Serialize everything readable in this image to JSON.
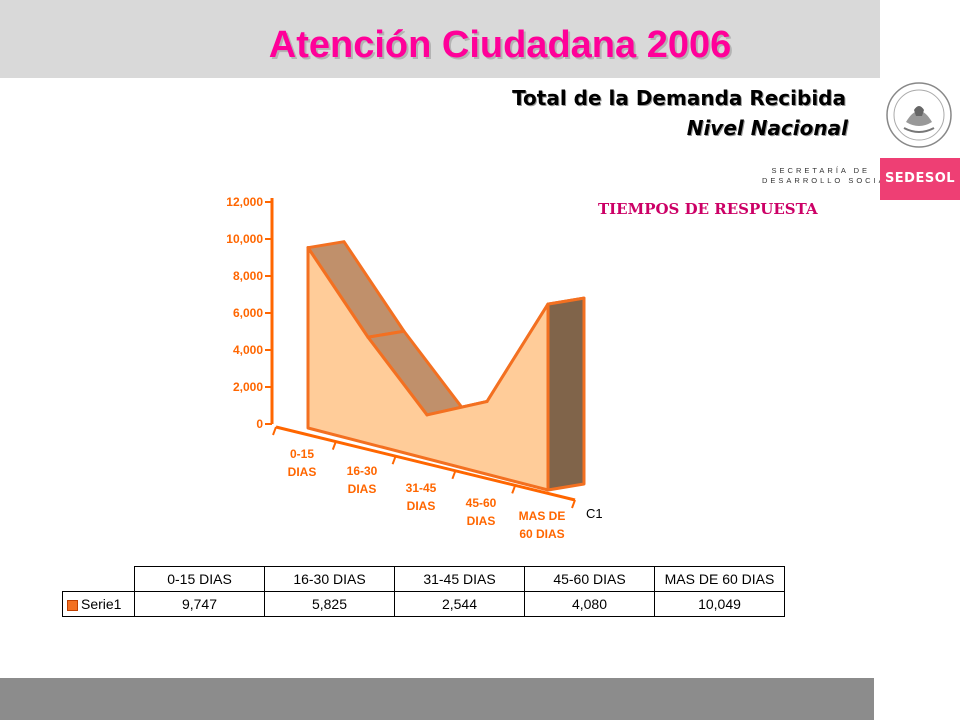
{
  "page": {
    "title": "Atención Ciudadana 2006",
    "subtitle": "Total de la Demanda Recibida",
    "subtitle2": "Nivel Nacional"
  },
  "branding": {
    "dept_line1": "SECRETARÍA DE",
    "dept_line2": "DESARROLLO SOCIAL",
    "logo_text": "SEDESOL",
    "seal_icon": "coat-of-arms-icon",
    "accent_color": "#ee3f74"
  },
  "chart_data": {
    "type": "area",
    "title": "TIEMPOS DE RESPUESTA",
    "categories": [
      "0-15\nDIAS",
      "16-30\nDIAS",
      "31-45\nDIAS",
      "45-60\nDIAS",
      "MAS DE\n60 DIAS"
    ],
    "series": [
      {
        "name": "Serie1",
        "values": [
          9747,
          5825,
          2544,
          4080,
          10049
        ]
      }
    ],
    "series_axis_label": "C1",
    "yticks": [
      "0",
      "2,000",
      "4,000",
      "6,000",
      "8,000",
      "10,000",
      "12,000"
    ],
    "ylim": [
      0,
      12000
    ],
    "colors": {
      "front": "#ffcc99",
      "top": "#c0906b",
      "side": "#80644a",
      "edge": "#f37021",
      "axis": "#ff6600",
      "tick_text": "#ff6600"
    },
    "grid": false
  },
  "table": {
    "headers": [
      "0-15 DIAS",
      "16-30 DIAS",
      "31-45 DIAS",
      "45-60 DIAS",
      "MAS DE 60 DIAS"
    ],
    "row_label": "Serie1",
    "values": [
      "9,747",
      "5,825",
      "2,544",
      "4,080",
      "10,049"
    ]
  }
}
